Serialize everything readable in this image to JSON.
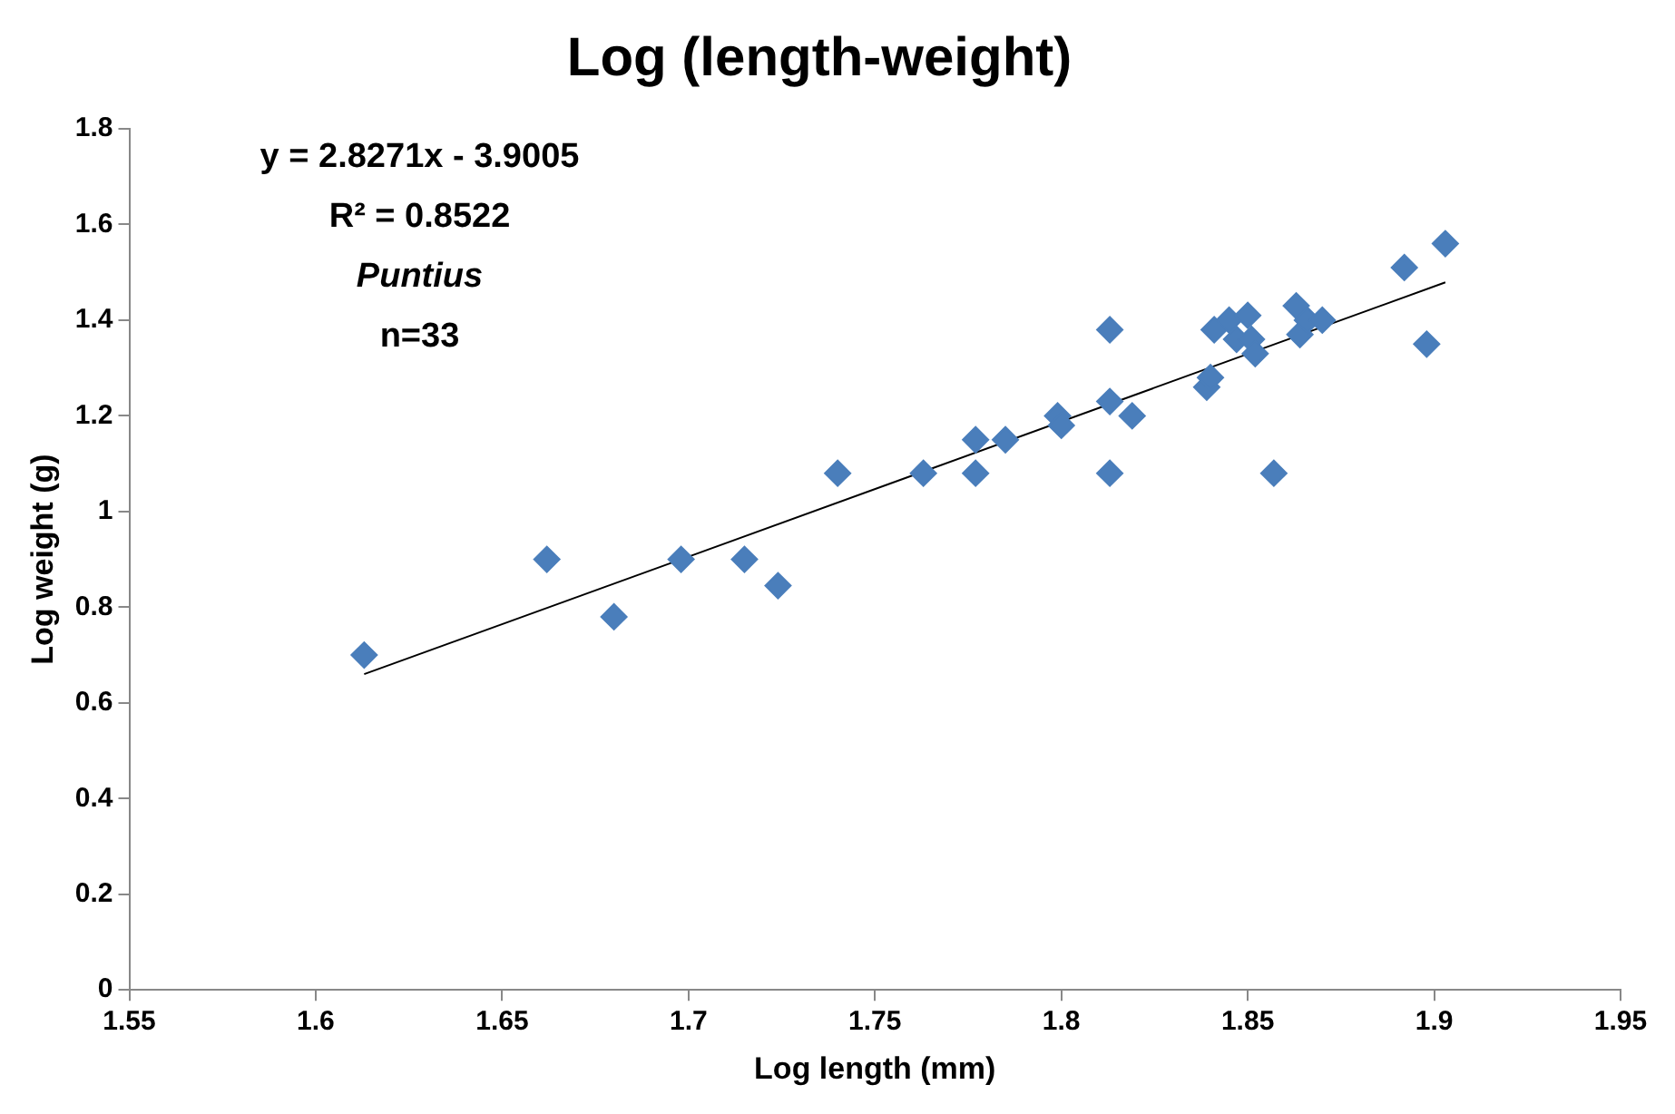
{
  "chart_data": {
    "type": "scatter",
    "title": "Log (length-weight)",
    "xlabel": "Log length (mm)",
    "ylabel": "Log weight (g)",
    "annotations": [
      "y = 2.8271x - 3.9005",
      "R² = 0.8522",
      "Puntius",
      "n=33"
    ],
    "xlim": [
      1.55,
      1.95
    ],
    "xticks": [
      1.55,
      1.6,
      1.65,
      1.7,
      1.75,
      1.8,
      1.85,
      1.9,
      1.95
    ],
    "ylim": [
      0,
      1.8
    ],
    "yticks": [
      0,
      0.2,
      0.4,
      0.6,
      0.8,
      1,
      1.2,
      1.4,
      1.6,
      1.8
    ],
    "grid": false,
    "legend": false,
    "marker": "diamond",
    "series": [
      {
        "type": "scatter",
        "color": "#4a7ebb",
        "x": [
          1.613,
          1.662,
          1.68,
          1.698,
          1.715,
          1.724,
          1.74,
          1.763,
          1.777,
          1.777,
          1.785,
          1.799,
          1.8,
          1.813,
          1.813,
          1.813,
          1.819,
          1.839,
          1.84,
          1.841,
          1.845,
          1.847,
          1.85,
          1.851,
          1.852,
          1.857,
          1.863,
          1.864,
          1.866,
          1.87,
          1.892,
          1.898,
          1.903
        ],
        "values": [
          0.7,
          0.9,
          0.78,
          0.9,
          0.9,
          0.845,
          1.08,
          1.08,
          1.08,
          1.15,
          1.15,
          1.2,
          1.18,
          1.38,
          1.23,
          1.08,
          1.2,
          1.26,
          1.28,
          1.38,
          1.4,
          1.36,
          1.41,
          1.36,
          1.33,
          1.08,
          1.43,
          1.37,
          1.4,
          1.4,
          1.51,
          1.35,
          1.56
        ]
      },
      {
        "type": "line",
        "color": "#000000",
        "line_style": "solid",
        "marker": "none",
        "x": [
          1.613,
          1.903
        ],
        "values": [
          0.66,
          1.479
        ]
      }
    ]
  }
}
